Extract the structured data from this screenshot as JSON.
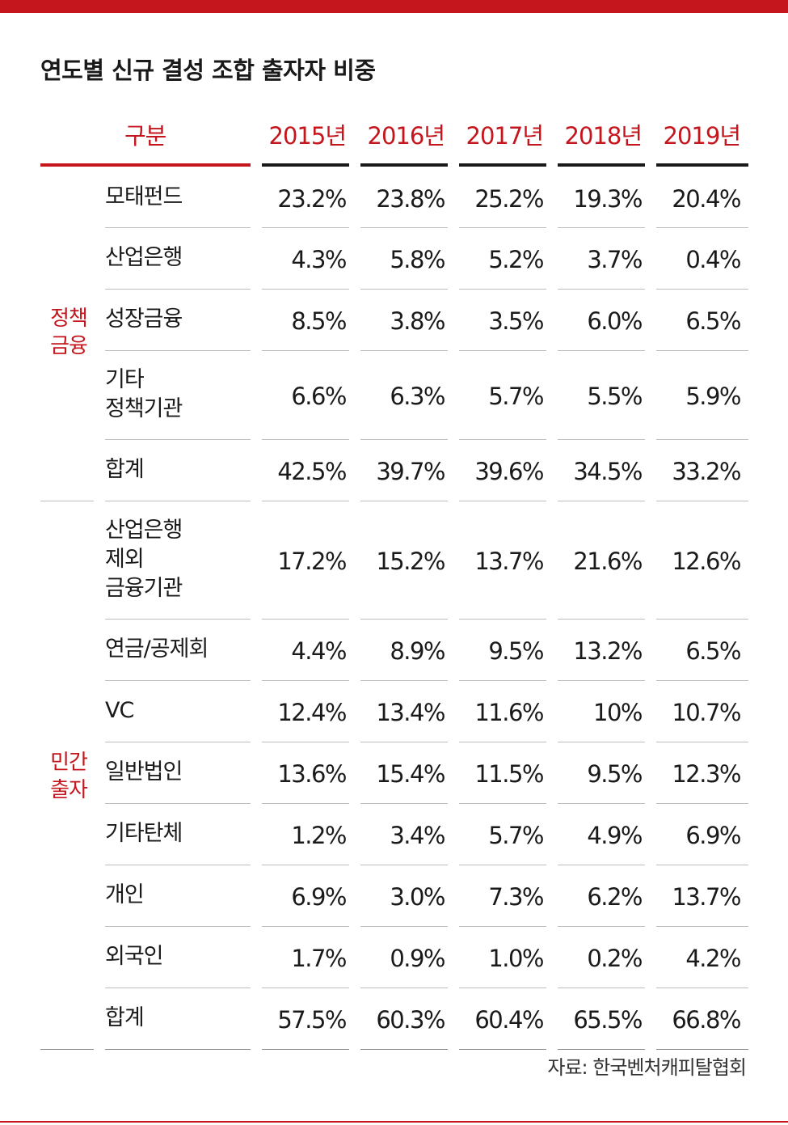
{
  "colors": {
    "accent": "#c4161c",
    "text": "#1a1a1a",
    "rule": "#bdbdbd",
    "header_rule": "#1a1a1a"
  },
  "title": "연도별 신규 결성 조합 출자자 비중",
  "chart_data": {
    "type": "table",
    "title": "연도별 신규 결성 조합 출자자 비중",
    "category_header": "구분",
    "columns": [
      "2015년",
      "2016년",
      "2017년",
      "2018년",
      "2019년"
    ],
    "groups": [
      {
        "name": "정책금융",
        "lines": [
          "정책",
          "금융"
        ],
        "rows": [
          {
            "label": [
              "모태펀드"
            ],
            "values": [
              "23.2%",
              "23.8%",
              "25.2%",
              "19.3%",
              "20.4%"
            ]
          },
          {
            "label": [
              "산업은행"
            ],
            "values": [
              "4.3%",
              "5.8%",
              "5.2%",
              "3.7%",
              "0.4%"
            ]
          },
          {
            "label": [
              "성장금융"
            ],
            "values": [
              "8.5%",
              "3.8%",
              "3.5%",
              "6.0%",
              "6.5%"
            ]
          },
          {
            "label": [
              "기타",
              "정책기관"
            ],
            "values": [
              "6.6%",
              "6.3%",
              "5.7%",
              "5.5%",
              "5.9%"
            ]
          },
          {
            "label": [
              "합계"
            ],
            "values": [
              "42.5%",
              "39.7%",
              "39.6%",
              "34.5%",
              "33.2%"
            ]
          }
        ]
      },
      {
        "name": "민간출자",
        "lines": [
          "민간",
          "출자"
        ],
        "rows": [
          {
            "label": [
              "산업은행",
              "제외",
              "금융기관"
            ],
            "values": [
              "17.2%",
              "15.2%",
              "13.7%",
              "21.6%",
              "12.6%"
            ]
          },
          {
            "label": [
              "연금/공제회"
            ],
            "values": [
              "4.4%",
              "8.9%",
              "9.5%",
              "13.2%",
              "6.5%"
            ]
          },
          {
            "label": [
              "VC"
            ],
            "values": [
              "12.4%",
              "13.4%",
              "11.6%",
              "10%",
              "10.7%"
            ]
          },
          {
            "label": [
              "일반법인"
            ],
            "values": [
              "13.6%",
              "15.4%",
              "11.5%",
              "9.5%",
              "12.3%"
            ]
          },
          {
            "label": [
              "기타탄체"
            ],
            "values": [
              "1.2%",
              "3.4%",
              "5.7%",
              "4.9%",
              "6.9%"
            ]
          },
          {
            "label": [
              "개인"
            ],
            "values": [
              "6.9%",
              "3.0%",
              "7.3%",
              "6.2%",
              "13.7%"
            ]
          },
          {
            "label": [
              "외국인"
            ],
            "values": [
              "1.7%",
              "0.9%",
              "1.0%",
              "0.2%",
              "4.2%"
            ]
          },
          {
            "label": [
              "합계"
            ],
            "values": [
              "57.5%",
              "60.3%",
              "60.4%",
              "65.5%",
              "66.8%"
            ]
          }
        ]
      }
    ]
  },
  "source": "자료: 한국벤처캐피탈협회"
}
